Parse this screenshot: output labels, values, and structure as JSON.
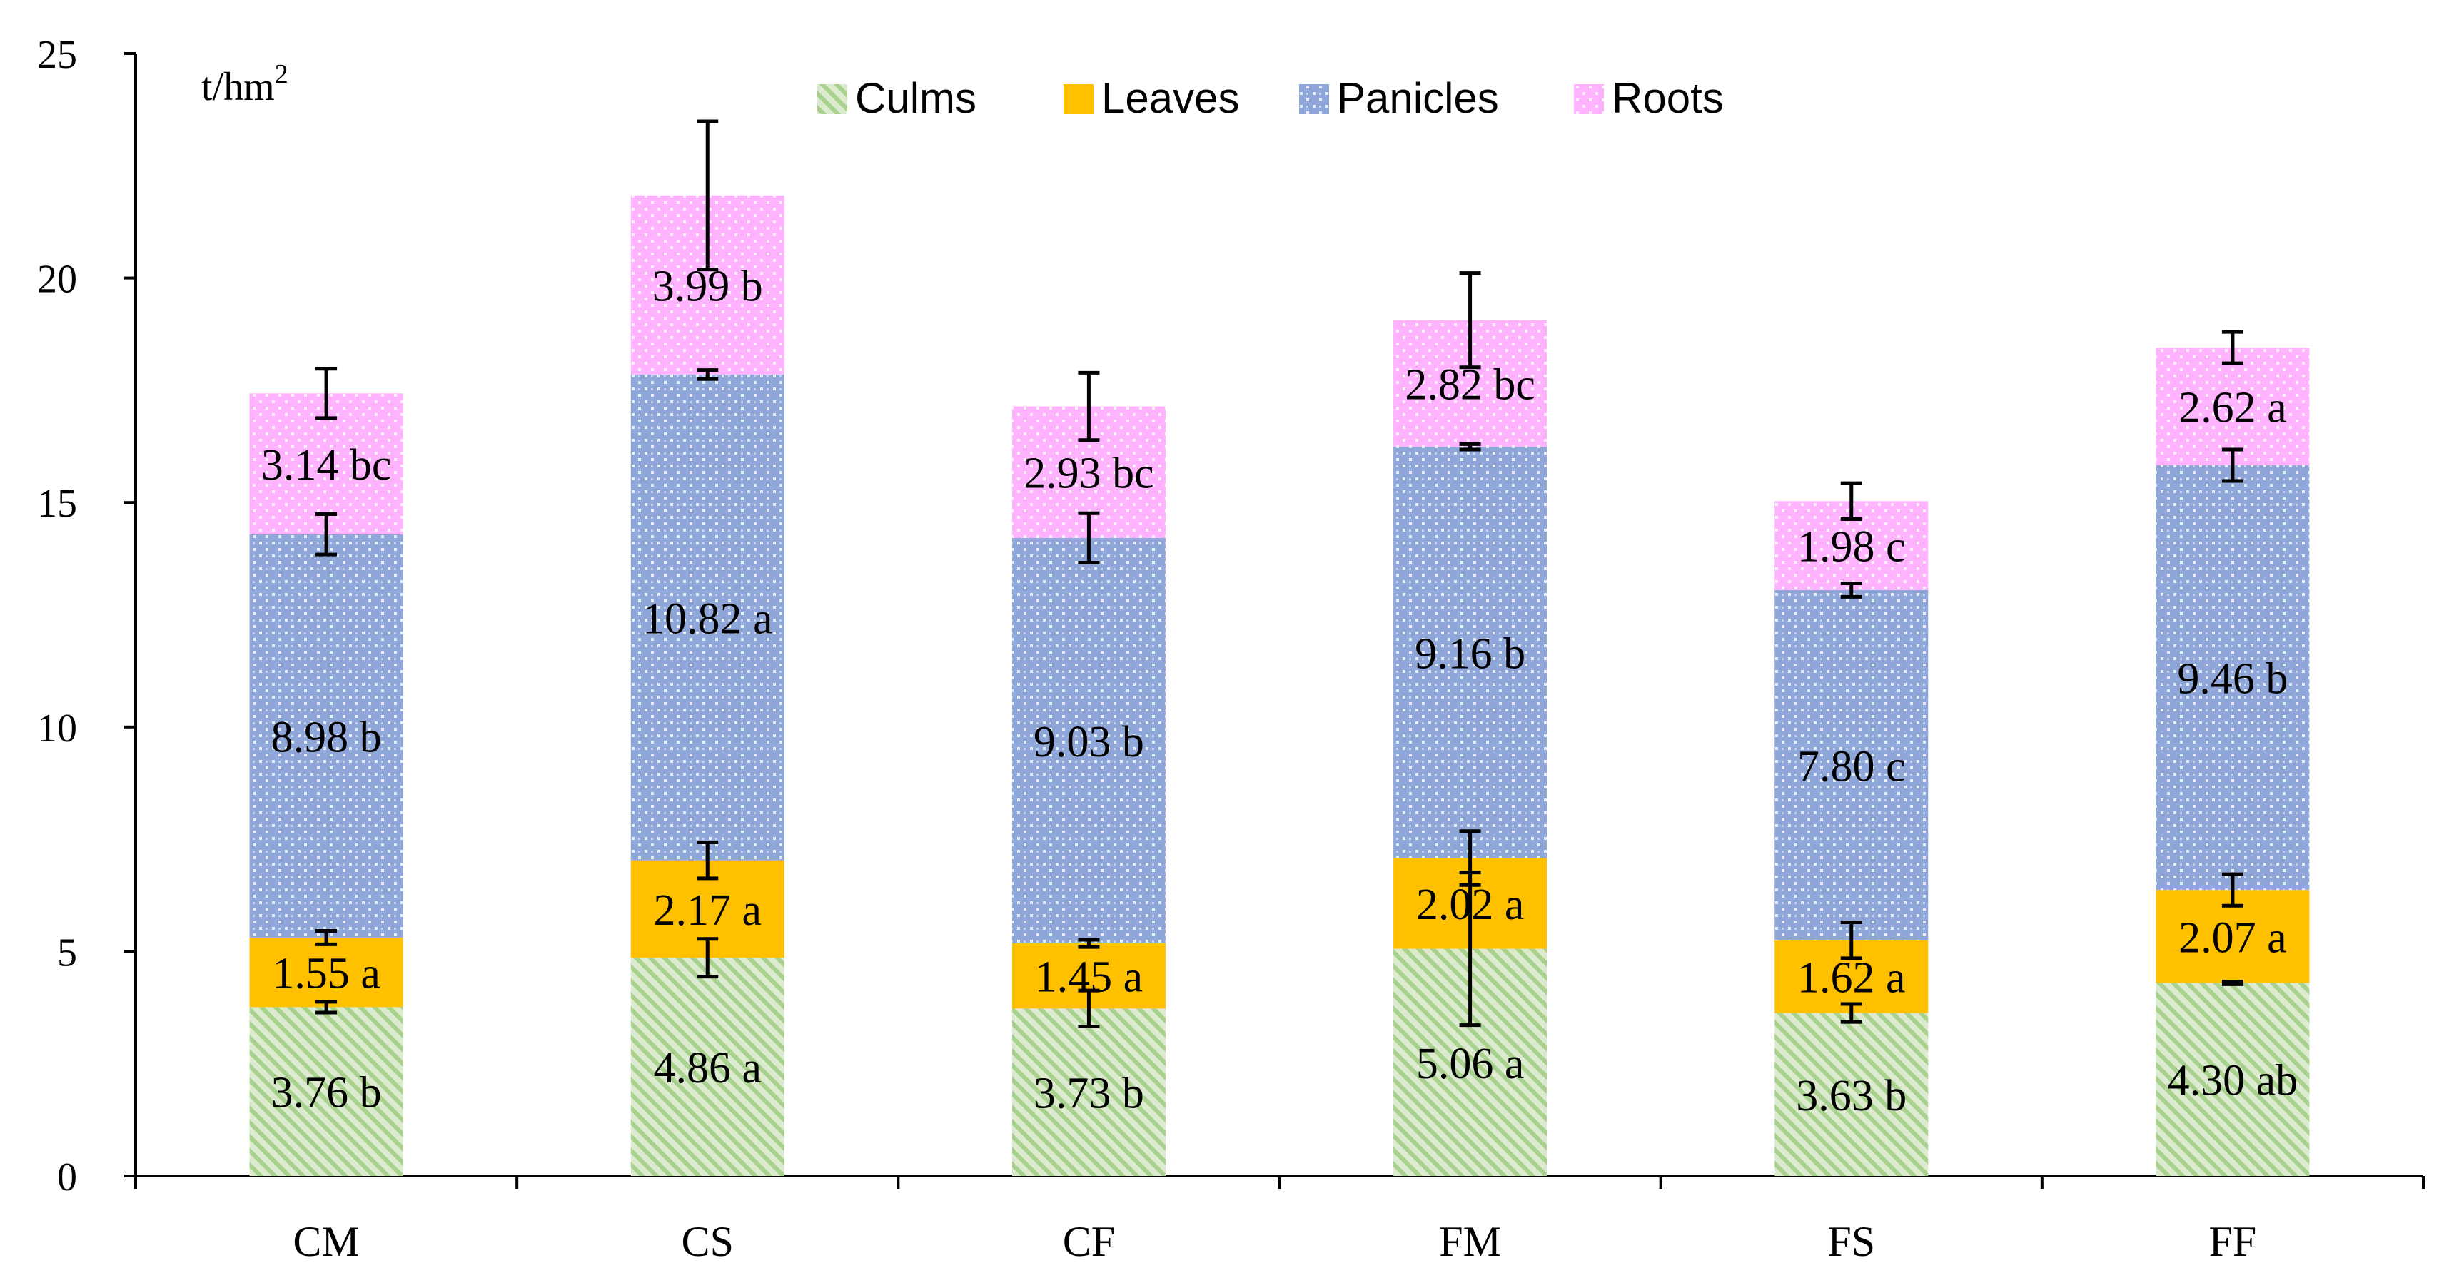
{
  "chart_data": {
    "type": "stacked-bar",
    "unit_label": {
      "base": "t/hm",
      "superscript": "2"
    },
    "categories": [
      "CM",
      "CS",
      "CF",
      "FM",
      "FS",
      "FF"
    ],
    "ylim": [
      0,
      25
    ],
    "yticks": [
      0,
      5,
      10,
      15,
      20,
      25
    ],
    "legend_position": "top-center",
    "series": [
      {
        "name": "Culms",
        "color": "#a9d18e",
        "pattern": "diagonal-stripes",
        "values": [
          3.76,
          4.86,
          3.73,
          5.06,
          3.63,
          4.3
        ],
        "labels": [
          "3.76 b",
          "4.86 a",
          "3.73 b",
          "5.06 a",
          "3.63 b",
          "4.30 ab"
        ],
        "errors": [
          0.12,
          0.42,
          0.4,
          1.7,
          0.2,
          0.03
        ]
      },
      {
        "name": "Leaves",
        "color": "#ffc000",
        "pattern": "solid",
        "values": [
          1.55,
          2.17,
          1.45,
          2.02,
          1.62,
          2.07
        ],
        "labels": [
          "1.55 a",
          "2.17 a",
          "1.45 a",
          "2.02 a",
          "1.62 a",
          "2.07 a"
        ],
        "errors": [
          0.15,
          0.4,
          0.08,
          0.6,
          0.4,
          0.35
        ]
      },
      {
        "name": "Panicles",
        "color": "#8faadc",
        "pattern": "dots",
        "values": [
          8.98,
          10.82,
          9.03,
          9.16,
          7.8,
          9.46
        ],
        "labels": [
          "8.98 b",
          "10.82 a",
          "9.03 b",
          "9.16 b",
          "7.80 c",
          "9.46 b"
        ],
        "errors": [
          0.45,
          0.1,
          0.55,
          0.06,
          0.15,
          0.35
        ]
      },
      {
        "name": "Roots",
        "color": "#ff99ff",
        "pattern": "dots",
        "values": [
          3.14,
          3.99,
          2.93,
          2.82,
          1.98,
          2.62
        ],
        "labels": [
          "3.14 bc",
          "3.99 b",
          "2.93 bc",
          "2.82 bc",
          "1.98 c",
          "2.62 a"
        ],
        "errors": [
          0.55,
          1.65,
          0.75,
          1.05,
          0.4,
          0.35
        ]
      }
    ]
  }
}
